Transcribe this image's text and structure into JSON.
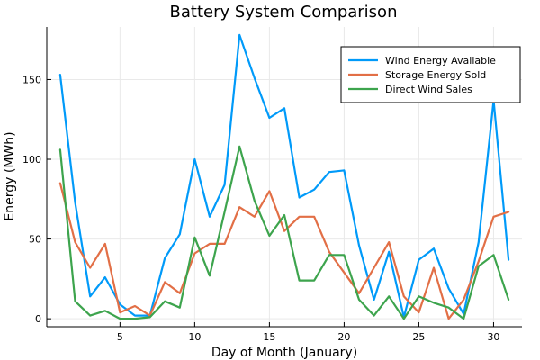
{
  "chart_data": {
    "type": "line",
    "title": "Battery System Comparison",
    "xlabel": "Day of Month (January)",
    "ylabel": "Energy (MWh)",
    "xlim": [
      0.1,
      31.9
    ],
    "ylim": [
      -5,
      183
    ],
    "x_ticks": [
      5,
      10,
      15,
      20,
      25,
      30
    ],
    "y_ticks": [
      0,
      50,
      100,
      150
    ],
    "grid": true,
    "legend_position": "top-right",
    "x": [
      1,
      2,
      3,
      4,
      5,
      6,
      7,
      8,
      9,
      10,
      11,
      12,
      13,
      14,
      15,
      16,
      17,
      18,
      19,
      20,
      21,
      22,
      23,
      24,
      25,
      26,
      27,
      28,
      29,
      30,
      31
    ],
    "series": [
      {
        "name": "Wind Energy Available",
        "color": "#009af9",
        "values": [
          153,
          73,
          14,
          26,
          9,
          2,
          2,
          38,
          53,
          100,
          64,
          84,
          178,
          151,
          126,
          132,
          76,
          81,
          92,
          93,
          46,
          12,
          42,
          1,
          37,
          44,
          19,
          3,
          48,
          137,
          37
        ]
      },
      {
        "name": "Storage Energy Sold",
        "color": "#e26f46",
        "values": [
          85,
          48,
          32,
          47,
          4,
          8,
          2,
          23,
          16,
          41,
          47,
          47,
          70,
          64,
          80,
          55,
          64,
          64,
          42,
          29,
          16,
          32,
          48,
          14,
          4,
          32,
          0,
          12,
          36,
          64,
          67
        ]
      },
      {
        "name": "Direct Wind Sales",
        "color": "#3da44d",
        "values": [
          106,
          11,
          2,
          5,
          0,
          0,
          1,
          11,
          7,
          51,
          27,
          67,
          108,
          74,
          52,
          65,
          24,
          24,
          40,
          40,
          12,
          2,
          14,
          0,
          14,
          10,
          7,
          0,
          33,
          40,
          12
        ]
      }
    ]
  }
}
